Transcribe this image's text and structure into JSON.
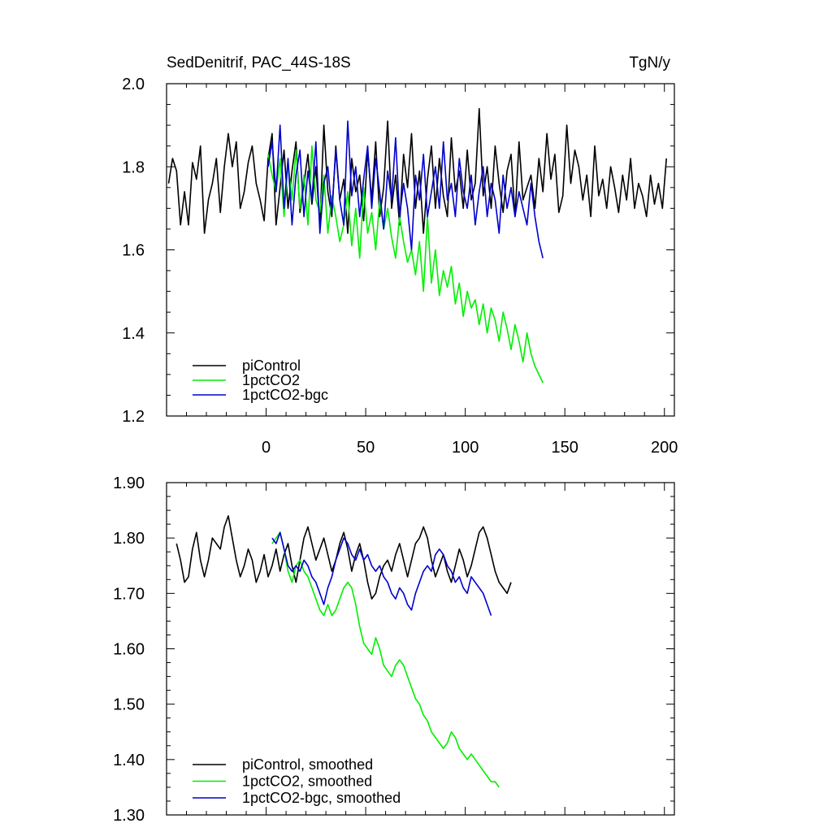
{
  "chart_data": [
    {
      "type": "line",
      "title": "SedDenitrif, PAC_44S-18S",
      "units": "TgN/y",
      "xlim": [
        -50,
        205
      ],
      "ylim": [
        1.2,
        2.0
      ],
      "xticks": [
        0,
        50,
        100,
        150,
        200
      ],
      "xtick_labels": [
        "0",
        "50",
        "100",
        "150",
        "200"
      ],
      "yticks": [
        1.2,
        1.4,
        1.6,
        1.8,
        2.0
      ],
      "ytick_labels": [
        "1.2",
        "1.4",
        "1.6",
        "1.8",
        "2.0"
      ],
      "legend_position": "bottom-left",
      "series": [
        {
          "name": "piControl",
          "color": "#000000",
          "x_start": -49,
          "x_step": 2,
          "values": [
            1.76,
            1.82,
            1.79,
            1.66,
            1.74,
            1.66,
            1.81,
            1.77,
            1.85,
            1.64,
            1.72,
            1.76,
            1.82,
            1.69,
            1.8,
            1.88,
            1.8,
            1.86,
            1.7,
            1.74,
            1.81,
            1.85,
            1.76,
            1.72,
            1.67,
            1.82,
            1.88,
            1.66,
            1.75,
            1.84,
            1.7,
            1.79,
            1.86,
            1.69,
            1.76,
            1.83,
            1.71,
            1.8,
            1.66,
            1.9,
            1.74,
            1.68,
            1.85,
            1.72,
            1.77,
            1.64,
            1.82,
            1.74,
            1.78,
            1.67,
            1.84,
            1.72,
            1.86,
            1.68,
            1.75,
            1.91,
            1.7,
            1.78,
            1.66,
            1.83,
            1.75,
            1.88,
            1.7,
            1.79,
            1.64,
            1.77,
            1.85,
            1.7,
            1.82,
            1.73,
            1.68,
            1.87,
            1.74,
            1.79,
            1.7,
            1.84,
            1.72,
            1.76,
            1.94,
            1.73,
            1.8,
            1.7,
            1.85,
            1.76,
            1.69,
            1.79,
            1.83,
            1.68,
            1.86,
            1.72,
            1.75,
            1.78,
            1.7,
            1.82,
            1.74,
            1.88,
            1.77,
            1.83,
            1.69,
            1.73,
            1.9,
            1.76,
            1.84,
            1.8,
            1.72,
            1.78,
            1.68,
            1.85,
            1.73,
            1.77,
            1.7,
            1.8,
            1.75,
            1.69,
            1.78,
            1.72,
            1.82,
            1.7,
            1.76,
            1.73,
            1.68,
            1.78,
            1.71,
            1.76,
            1.7,
            1.82
          ]
        },
        {
          "name": "1pctCO2",
          "color": "#00ee00",
          "x_start": 1,
          "x_step": 2,
          "values": [
            1.83,
            1.78,
            1.74,
            1.82,
            1.68,
            1.81,
            1.72,
            1.84,
            1.7,
            1.78,
            1.66,
            1.85,
            1.72,
            1.69,
            1.78,
            1.64,
            1.73,
            1.68,
            1.62,
            1.66,
            1.74,
            1.61,
            1.7,
            1.58,
            1.75,
            1.64,
            1.69,
            1.6,
            1.72,
            1.65,
            1.7,
            1.63,
            1.58,
            1.68,
            1.62,
            1.57,
            1.6,
            1.54,
            1.62,
            1.5,
            1.68,
            1.52,
            1.6,
            1.49,
            1.55,
            1.51,
            1.56,
            1.47,
            1.52,
            1.44,
            1.5,
            1.46,
            1.48,
            1.42,
            1.47,
            1.4,
            1.46,
            1.43,
            1.38,
            1.45,
            1.41,
            1.36,
            1.42,
            1.38,
            1.33,
            1.4,
            1.35,
            1.32,
            1.3,
            1.28
          ]
        },
        {
          "name": "1pctCO2-bgc",
          "color": "#0000cc",
          "x_start": 1,
          "x_step": 2,
          "values": [
            1.8,
            1.86,
            1.74,
            1.9,
            1.7,
            1.82,
            1.66,
            1.78,
            1.84,
            1.68,
            1.79,
            1.72,
            1.86,
            1.64,
            1.76,
            1.8,
            1.69,
            1.84,
            1.72,
            1.66,
            1.91,
            1.73,
            1.8,
            1.68,
            1.77,
            1.85,
            1.7,
            1.82,
            1.74,
            1.65,
            1.79,
            1.72,
            1.87,
            1.68,
            1.76,
            1.7,
            1.6,
            1.78,
            1.72,
            1.83,
            1.68,
            1.74,
            1.8,
            1.7,
            1.86,
            1.72,
            1.76,
            1.68,
            1.82,
            1.74,
            1.7,
            1.78,
            1.66,
            1.74,
            1.8,
            1.68,
            1.76,
            1.72,
            1.64,
            1.78,
            1.7,
            1.75,
            1.68,
            1.74,
            1.7,
            1.66,
            1.76,
            1.68,
            1.62,
            1.58
          ]
        }
      ]
    },
    {
      "type": "line",
      "title": "",
      "xlim": [
        -50,
        205
      ],
      "ylim": [
        1.3,
        1.9
      ],
      "xticks": [
        0,
        50,
        100,
        150,
        200
      ],
      "yticks": [
        1.3,
        1.4,
        1.5,
        1.6,
        1.7,
        1.8,
        1.9
      ],
      "ytick_labels": [
        "1.30",
        "1.40",
        "1.50",
        "1.60",
        "1.70",
        "1.80",
        "1.90"
      ],
      "legend_position": "bottom-left",
      "series": [
        {
          "name": "piControl, smoothed",
          "color": "#000000",
          "x_start": -45,
          "x_step": 2,
          "values": [
            1.79,
            1.76,
            1.72,
            1.73,
            1.78,
            1.81,
            1.76,
            1.73,
            1.76,
            1.8,
            1.79,
            1.78,
            1.82,
            1.84,
            1.8,
            1.76,
            1.73,
            1.75,
            1.78,
            1.76,
            1.72,
            1.74,
            1.77,
            1.73,
            1.75,
            1.78,
            1.74,
            1.77,
            1.79,
            1.75,
            1.72,
            1.76,
            1.8,
            1.82,
            1.79,
            1.76,
            1.78,
            1.8,
            1.77,
            1.74,
            1.76,
            1.79,
            1.81,
            1.78,
            1.74,
            1.77,
            1.79,
            1.76,
            1.72,
            1.69,
            1.7,
            1.73,
            1.75,
            1.76,
            1.74,
            1.77,
            1.79,
            1.76,
            1.73,
            1.76,
            1.79,
            1.8,
            1.82,
            1.8,
            1.76,
            1.73,
            1.75,
            1.77,
            1.74,
            1.72,
            1.75,
            1.78,
            1.76,
            1.73,
            1.75,
            1.78,
            1.81,
            1.82,
            1.8,
            1.77,
            1.74,
            1.72,
            1.71,
            1.7,
            1.72
          ]
        },
        {
          "name": "1pctCO2, smoothed",
          "color": "#00ee00",
          "x_start": 3,
          "x_step": 2,
          "values": [
            1.79,
            1.8,
            1.81,
            1.78,
            1.74,
            1.72,
            1.75,
            1.76,
            1.74,
            1.73,
            1.71,
            1.69,
            1.67,
            1.66,
            1.68,
            1.66,
            1.67,
            1.69,
            1.71,
            1.72,
            1.71,
            1.68,
            1.64,
            1.61,
            1.6,
            1.59,
            1.62,
            1.6,
            1.57,
            1.56,
            1.55,
            1.57,
            1.58,
            1.57,
            1.55,
            1.53,
            1.51,
            1.5,
            1.48,
            1.47,
            1.45,
            1.44,
            1.43,
            1.42,
            1.43,
            1.45,
            1.44,
            1.42,
            1.41,
            1.4,
            1.41,
            1.4,
            1.39,
            1.38,
            1.37,
            1.36,
            1.36,
            1.35
          ]
        },
        {
          "name": "1pctCO2-bgc, smoothed",
          "color": "#0000cc",
          "x_start": 3,
          "x_step": 2,
          "values": [
            1.8,
            1.79,
            1.81,
            1.78,
            1.75,
            1.74,
            1.75,
            1.74,
            1.76,
            1.75,
            1.73,
            1.72,
            1.7,
            1.68,
            1.71,
            1.73,
            1.76,
            1.78,
            1.8,
            1.79,
            1.77,
            1.76,
            1.78,
            1.76,
            1.77,
            1.75,
            1.74,
            1.75,
            1.73,
            1.72,
            1.7,
            1.69,
            1.71,
            1.7,
            1.68,
            1.67,
            1.7,
            1.72,
            1.74,
            1.75,
            1.74,
            1.77,
            1.78,
            1.77,
            1.75,
            1.74,
            1.72,
            1.73,
            1.71,
            1.7,
            1.73,
            1.72,
            1.71,
            1.7,
            1.68,
            1.66
          ]
        }
      ]
    }
  ]
}
